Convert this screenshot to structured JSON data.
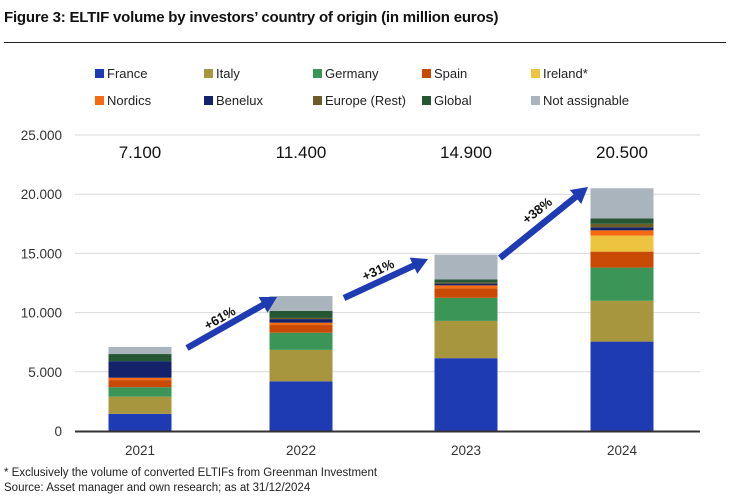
{
  "figure": {
    "title": "Figure 3: ELTIF volume by investors’ country of origin (in million euros)",
    "footnote": "* Exclusively the volume of converted ELTIFs from Greenman Investment",
    "source": "Source: Asset manager and own research; as at 31/12/2024"
  },
  "chart_data": {
    "type": "bar",
    "stacked": true,
    "title": "ELTIF volume by investors’ country of origin (in million euros)",
    "xlabel": "",
    "ylabel": "",
    "ylim": [
      0,
      25000
    ],
    "yticks": [
      0,
      5000,
      10000,
      15000,
      20000,
      25000
    ],
    "ytick_labels": [
      "0",
      "5.000",
      "10.000",
      "15.000",
      "20.000",
      "25.000"
    ],
    "grid": true,
    "legend_position": "top",
    "categories": [
      "2021",
      "2022",
      "2023",
      "2024"
    ],
    "totals": [
      7100,
      11400,
      14900,
      20500
    ],
    "total_labels": [
      "7.100",
      "11.400",
      "14.900",
      "20.500"
    ],
    "series": [
      {
        "name": "France",
        "color": "#1f3bb3",
        "values": [
          1450,
          4200,
          6150,
          7550
        ]
      },
      {
        "name": "Italy",
        "color": "#a8963e",
        "values": [
          1450,
          2650,
          3150,
          3450
        ]
      },
      {
        "name": "Germany",
        "color": "#3a9556",
        "values": [
          800,
          1450,
          1950,
          2800
        ]
      },
      {
        "name": "Spain",
        "color": "#c84a05",
        "values": [
          600,
          650,
          800,
          1350
        ]
      },
      {
        "name": "Ireland*",
        "color": "#ecc440",
        "values": [
          0,
          0,
          0,
          1350
        ]
      },
      {
        "name": "Nordics",
        "color": "#f56a12",
        "values": [
          200,
          200,
          250,
          450
        ]
      },
      {
        "name": "Benelux",
        "color": "#13226b",
        "values": [
          1400,
          300,
          150,
          250
        ]
      },
      {
        "name": "Europe (Rest)",
        "color": "#6b5c28",
        "values": [
          0,
          100,
          100,
          300
        ]
      },
      {
        "name": "Global",
        "color": "#255735",
        "values": [
          600,
          600,
          250,
          450
        ]
      },
      {
        "name": "Not assignable",
        "color": "#aab4bc",
        "values": [
          600,
          1250,
          2100,
          2550
        ]
      }
    ],
    "annotations": [
      {
        "text": "+61%",
        "from": "2021",
        "to": "2022",
        "color": "#1f3bb3"
      },
      {
        "text": "+31%",
        "from": "2022",
        "to": "2023",
        "color": "#1f3bb3"
      },
      {
        "text": "+38%",
        "from": "2023",
        "to": "2024",
        "color": "#1f3bb3"
      }
    ]
  }
}
